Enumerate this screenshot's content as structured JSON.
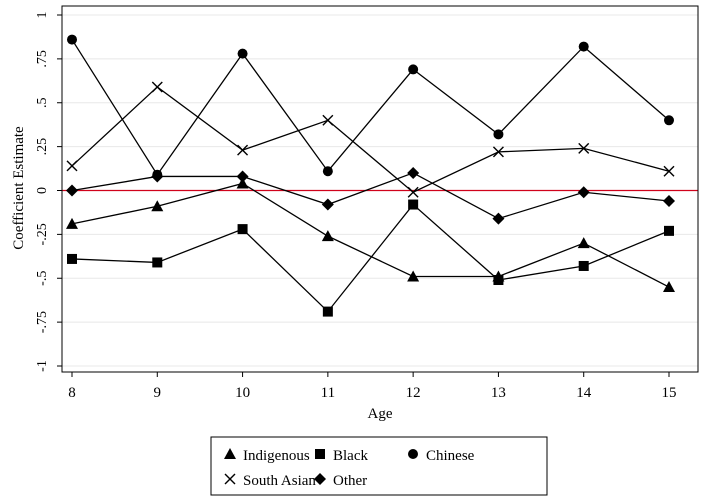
{
  "chart_data": {
    "type": "line",
    "title": "",
    "xlabel": "Age",
    "ylabel": "Coefficient Estimate",
    "x": [
      8,
      9,
      10,
      11,
      12,
      13,
      14,
      15
    ],
    "xlim": [
      8,
      15
    ],
    "ylim": [
      -1,
      1
    ],
    "x_ticks": [
      "8",
      "9",
      "10",
      "11",
      "12",
      "13",
      "14",
      "15"
    ],
    "y_ticks": [
      {
        "value": -1,
        "label": "-1"
      },
      {
        "value": -0.75,
        "label": "-.75"
      },
      {
        "value": -0.5,
        "label": "-.5"
      },
      {
        "value": -0.25,
        "label": "-.25"
      },
      {
        "value": 0,
        "label": "0"
      },
      {
        "value": 0.25,
        "label": ".25"
      },
      {
        "value": 0.5,
        "label": ".5"
      },
      {
        "value": 0.75,
        "label": ".75"
      },
      {
        "value": 1,
        "label": "1"
      }
    ],
    "grid": "horizontal",
    "reference_line": {
      "y": 0,
      "color": "#d0021b"
    },
    "legend_position": "bottom",
    "series": [
      {
        "name": "Indigenous",
        "marker": "triangle",
        "values": [
          -0.19,
          -0.09,
          0.04,
          -0.26,
          -0.49,
          -0.49,
          -0.3,
          -0.55
        ]
      },
      {
        "name": "Black",
        "marker": "square",
        "values": [
          -0.39,
          -0.41,
          -0.22,
          -0.69,
          -0.08,
          -0.51,
          -0.43,
          -0.23
        ]
      },
      {
        "name": "Chinese",
        "marker": "circle",
        "values": [
          0.86,
          0.09,
          0.78,
          0.11,
          0.69,
          0.32,
          0.82,
          0.4
        ]
      },
      {
        "name": "South Asian",
        "marker": "x",
        "values": [
          0.14,
          0.59,
          0.23,
          0.4,
          -0.01,
          0.22,
          0.24,
          0.11
        ]
      },
      {
        "name": "Other",
        "marker": "diamond",
        "values": [
          0.0,
          0.08,
          0.08,
          -0.08,
          0.1,
          -0.16,
          -0.01,
          -0.06
        ]
      }
    ],
    "colors": {
      "line": "#000000",
      "grid": "#e8e8e8",
      "frame": "#000000",
      "reference": "#d0021b"
    }
  }
}
